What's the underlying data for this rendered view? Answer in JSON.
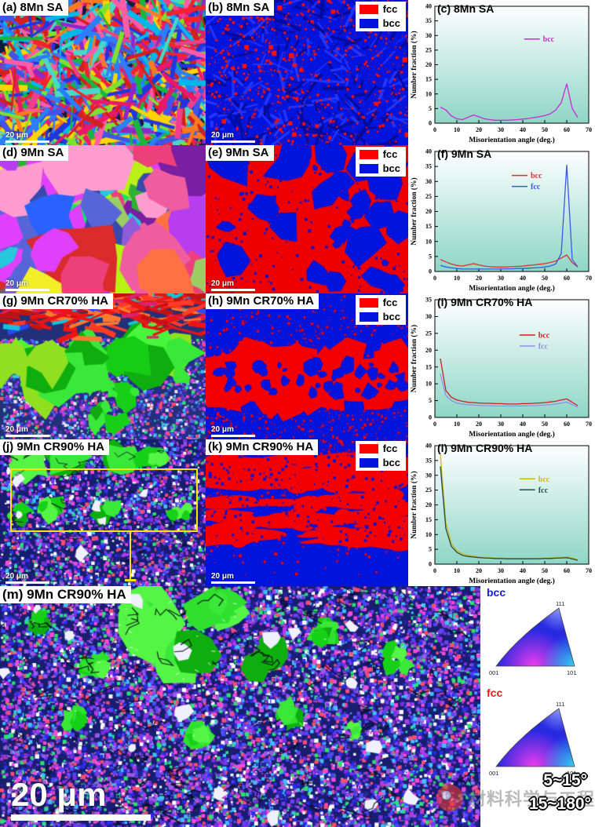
{
  "figure": {
    "scale_label": "20 μm",
    "panels": [
      {
        "label": "(a) 8Mn SA"
      },
      {
        "label": "(b) 8Mn SA"
      },
      {
        "label": "(d) 9Mn SA"
      },
      {
        "label": "(e) 9Mn SA"
      },
      {
        "label": "(g) 9Mn CR70% HA"
      },
      {
        "label": "(h) 9Mn CR70% HA"
      },
      {
        "label": "(j) 9Mn CR90% HA"
      },
      {
        "label": "(k) 9Mn CR90% HA"
      },
      {
        "label": "(m) 9Mn CR90% HA"
      }
    ],
    "phase_legend": [
      {
        "name": "fcc",
        "color": "#ff0000"
      },
      {
        "name": "bcc",
        "color": "#0014dc"
      }
    ],
    "ipf_keys": [
      {
        "phase": "bcc",
        "corner_bl": "001",
        "corner_br": "101",
        "corner_top": "111"
      },
      {
        "phase": "fcc",
        "corner_bl": "001",
        "corner_br": "101",
        "corner_top": "111"
      }
    ],
    "boundary_legend": [
      {
        "label": "5~15°"
      },
      {
        "label": "15~180°"
      }
    ],
    "watermark": {
      "text": "材料科学与工程"
    }
  },
  "chart_data": [
    {
      "type": "line",
      "title": "(c) 8Mn SA",
      "xlabel": "Misorientation angle (deg.)",
      "ylabel": "Number fraction (%)",
      "xlim": [
        0,
        70
      ],
      "ylim": [
        0,
        40
      ],
      "xticks": [
        0,
        10,
        20,
        30,
        40,
        50,
        60,
        70
      ],
      "yticks": [
        0,
        5,
        10,
        15,
        20,
        25,
        30,
        35,
        40
      ],
      "legend_pos": [
        0.58,
        0.28
      ],
      "grid": false,
      "x": [
        2.5,
        5,
        7.5,
        10,
        12.5,
        15,
        17.5,
        20,
        22.5,
        25,
        27.5,
        30,
        32.5,
        35,
        37.5,
        40,
        42.5,
        45,
        47.5,
        50,
        52.5,
        55,
        57.5,
        60,
        62.5,
        65
      ],
      "series": [
        {
          "name": "bcc",
          "color": "#cc2ad6",
          "y": [
            5.5,
            4.5,
            2.5,
            1.5,
            1.2,
            2,
            2.8,
            2.2,
            1.5,
            1.2,
            1,
            1,
            1,
            1.1,
            1.2,
            1.4,
            1.6,
            1.9,
            2.2,
            2.6,
            3.2,
            4.5,
            7,
            13.5,
            5,
            2
          ]
        }
      ]
    },
    {
      "type": "line",
      "title": "(f) 9Mn SA",
      "xlabel": "Misorientation angle (deg.)",
      "ylabel": "Number fraction (%)",
      "xlim": [
        0,
        70
      ],
      "ylim": [
        0,
        40
      ],
      "xticks": [
        0,
        10,
        20,
        30,
        40,
        50,
        60,
        70
      ],
      "yticks": [
        0,
        5,
        10,
        15,
        20,
        25,
        30,
        35,
        40
      ],
      "legend_pos": [
        0.5,
        0.2
      ],
      "grid": false,
      "x": [
        2.5,
        5,
        7.5,
        10,
        12.5,
        15,
        17.5,
        20,
        22.5,
        25,
        27.5,
        30,
        32.5,
        35,
        37.5,
        40,
        42.5,
        45,
        47.5,
        50,
        52.5,
        55,
        57.5,
        60,
        62.5,
        65
      ],
      "series": [
        {
          "name": "bcc",
          "color": "#e03030",
          "y": [
            4,
            3.2,
            2.5,
            2,
            1.8,
            2.2,
            2.6,
            2.2,
            1.8,
            1.6,
            1.5,
            1.5,
            1.5,
            1.6,
            1.7,
            1.8,
            2,
            2.2,
            2.4,
            2.6,
            3,
            3.5,
            4.5,
            5.5,
            3,
            1.5
          ]
        },
        {
          "name": "fcc",
          "color": "#3858e8",
          "y": [
            2,
            1.5,
            1.2,
            1,
            0.8,
            0.8,
            0.8,
            0.8,
            0.8,
            0.8,
            0.8,
            0.8,
            0.9,
            0.9,
            1,
            1,
            1.1,
            1.2,
            1.3,
            1.5,
            1.8,
            2.5,
            6,
            35.5,
            4,
            1.5
          ]
        }
      ]
    },
    {
      "type": "line",
      "title": "(i) 9Mn CR70% HA",
      "xlabel": "Misorientation angle (deg.)",
      "ylabel": "Number fraction (%)",
      "xlim": [
        0,
        70
      ],
      "ylim": [
        0,
        35
      ],
      "xticks": [
        0,
        10,
        20,
        30,
        40,
        50,
        60,
        70
      ],
      "yticks": [
        0,
        5,
        10,
        15,
        20,
        25,
        30,
        35
      ],
      "legend_pos": [
        0.55,
        0.3
      ],
      "grid": false,
      "x": [
        2.5,
        5,
        7.5,
        10,
        12.5,
        15,
        17.5,
        20,
        22.5,
        25,
        27.5,
        30,
        32.5,
        35,
        37.5,
        40,
        42.5,
        45,
        47.5,
        50,
        52.5,
        55,
        57.5,
        60,
        62.5,
        65
      ],
      "series": [
        {
          "name": "bcc",
          "color": "#d02020",
          "y": [
            17.5,
            8,
            6,
            5.2,
            4.8,
            4.5,
            4.4,
            4.3,
            4.2,
            4.2,
            4.1,
            4.1,
            4,
            4,
            4,
            4.1,
            4.1,
            4.2,
            4.3,
            4.4,
            4.6,
            4.8,
            5.2,
            5.5,
            4.5,
            3.5
          ]
        },
        {
          "name": "fcc",
          "color": "#8f8fe8",
          "y": [
            13,
            6.5,
            5,
            4.3,
            4,
            3.8,
            3.7,
            3.6,
            3.5,
            3.5,
            3.4,
            3.4,
            3.4,
            3.4,
            3.4,
            3.4,
            3.5,
            3.5,
            3.6,
            3.7,
            3.8,
            4,
            4.3,
            4.6,
            3.8,
            3
          ]
        }
      ]
    },
    {
      "type": "line",
      "title": "(l) 9Mn CR90% HA",
      "xlabel": "Misorientation angle (deg.)",
      "ylabel": "Number fraction (%)",
      "xlim": [
        0,
        70
      ],
      "ylim": [
        0,
        40
      ],
      "xticks": [
        0,
        10,
        20,
        30,
        40,
        50,
        60,
        70
      ],
      "yticks": [
        0,
        5,
        10,
        15,
        20,
        25,
        30,
        35,
        40
      ],
      "legend_pos": [
        0.55,
        0.28
      ],
      "grid": false,
      "x": [
        2.5,
        5,
        7.5,
        10,
        12.5,
        15,
        17.5,
        20,
        22.5,
        25,
        27.5,
        30,
        32.5,
        35,
        37.5,
        40,
        42.5,
        45,
        47.5,
        50,
        52.5,
        55,
        57.5,
        60,
        62.5,
        65
      ],
      "series": [
        {
          "name": "bcc",
          "color": "#d4b414",
          "y": [
            37,
            14,
            7,
            4.5,
            3.5,
            3,
            2.7,
            2.5,
            2.3,
            2.2,
            2.1,
            2,
            2,
            1.9,
            1.9,
            1.9,
            1.9,
            1.9,
            2,
            2,
            2.1,
            2.2,
            2.3,
            2.5,
            2,
            1.5
          ]
        },
        {
          "name": "fcc",
          "color": "#1f5048",
          "y": [
            33,
            12,
            6,
            4,
            3,
            2.6,
            2.4,
            2.2,
            2.1,
            2,
            1.9,
            1.9,
            1.8,
            1.8,
            1.8,
            1.8,
            1.8,
            1.8,
            1.8,
            1.9,
            1.9,
            2,
            2.1,
            2.2,
            1.8,
            1.3
          ]
        }
      ]
    }
  ]
}
